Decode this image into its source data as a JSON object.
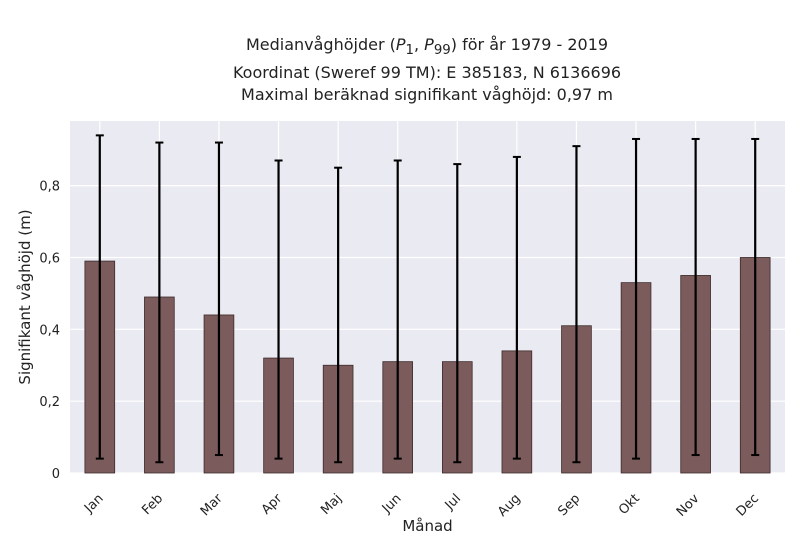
{
  "chart_data": {
    "type": "bar",
    "title_lines": [
      "Medianvåghöjder (P1, P99) för år 1979 - 2019",
      "Koordinat (Sweref 99 TM): E 385183, N 6136696",
      "Maximal beräknad signifikant våghöjd: 0,97 m"
    ],
    "title_parts": {
      "line1_prefix": "Medianvåghöjder (",
      "p_symbol": "P",
      "p1_sub": "1",
      "sep": ", ",
      "p99_sub": "99",
      "line1_suffix": ") för år 1979 - 2019"
    },
    "xlabel": "Månad",
    "ylabel": "Signifikant våghöjd (m)",
    "categories": [
      "Jan",
      "Feb",
      "Mar",
      "Apr",
      "Maj",
      "Jun",
      "Jul",
      "Aug",
      "Sep",
      "Okt",
      "Nov",
      "Dec"
    ],
    "values": [
      0.59,
      0.49,
      0.44,
      0.32,
      0.3,
      0.31,
      0.31,
      0.34,
      0.41,
      0.53,
      0.55,
      0.6
    ],
    "p1": [
      0.04,
      0.03,
      0.05,
      0.04,
      0.03,
      0.04,
      0.03,
      0.04,
      0.03,
      0.04,
      0.05,
      0.05
    ],
    "p99": [
      0.94,
      0.92,
      0.92,
      0.87,
      0.85,
      0.87,
      0.86,
      0.88,
      0.91,
      0.93,
      0.93,
      0.93
    ],
    "ylim": [
      0,
      0.98
    ],
    "yticks": [
      0,
      0.2,
      0.4,
      0.6,
      0.8
    ],
    "ytick_labels": [
      "0",
      "0,2",
      "0,4",
      "0,6",
      "0,8"
    ],
    "grid": true,
    "colors": {
      "bar": "#7b5b5b",
      "bar_edge": "#3d2b2b",
      "error_bar": "#000000",
      "plot_background": "#eaeaf2",
      "grid": "#ffffff"
    }
  }
}
